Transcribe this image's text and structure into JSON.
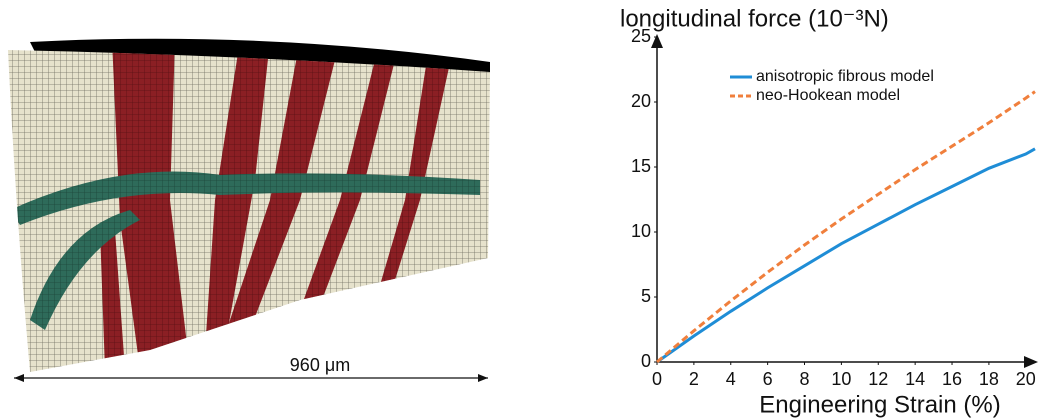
{
  "figure": {
    "scale_label": "960 μm"
  },
  "chart_data": {
    "type": "line",
    "title": "longitudinal force (10⁻³N)",
    "x_label": "Engineering Strain (%)",
    "x": [
      0,
      2,
      4,
      6,
      8,
      10,
      12,
      14,
      16,
      18,
      20,
      20.5
    ],
    "series": [
      {
        "name": "anisotropic fibrous model",
        "color": "#1f8dd6",
        "dash": false,
        "values": [
          0,
          2.0,
          3.9,
          5.7,
          7.4,
          9.1,
          10.6,
          12.1,
          13.5,
          14.9,
          16.0,
          16.4
        ]
      },
      {
        "name": "neo-Hookean model",
        "color": "#f07f3c",
        "dash": true,
        "values": [
          0,
          2.4,
          4.7,
          6.9,
          9.0,
          11.0,
          12.9,
          14.8,
          16.6,
          18.4,
          20.3,
          20.8
        ]
      }
    ],
    "xlim": [
      0,
      20.5
    ],
    "xticks": [
      0,
      2,
      4,
      6,
      8,
      10,
      12,
      14,
      16,
      18,
      20
    ],
    "ylim": [
      0,
      25
    ],
    "yticks": [
      0,
      5,
      10,
      15,
      20,
      25
    ],
    "grid": false
  }
}
